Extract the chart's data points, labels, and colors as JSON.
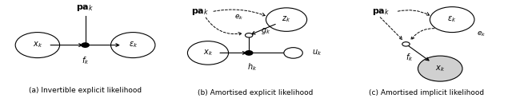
{
  "fig_width": 6.4,
  "fig_height": 1.23,
  "dpi": 100,
  "background": "#ffffff",
  "caption_a": "(a) Invertible explicit likelihood",
  "caption_b": "(b) Amortised explicit likelihood",
  "caption_c": "(c) Amortised implicit likelihood"
}
